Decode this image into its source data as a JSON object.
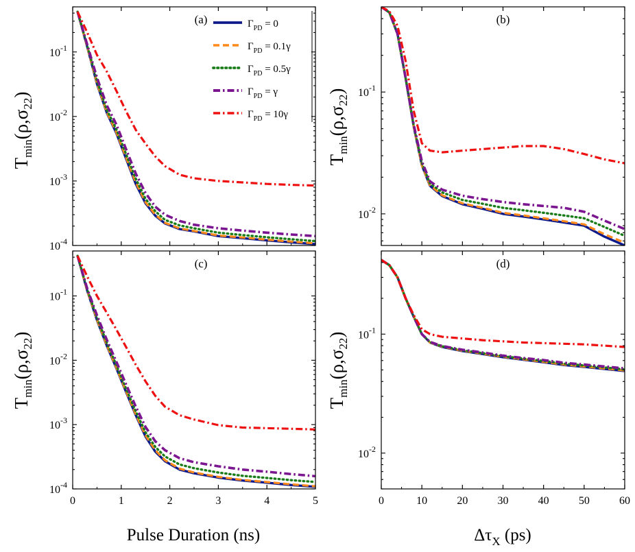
{
  "chart_data": [
    {
      "panel": "(a)",
      "type": "line",
      "yscale": "log",
      "xlim": [
        0,
        5
      ],
      "ylim": [
        0.0001,
        0.5
      ],
      "xticks": [
        "0",
        "1",
        "2",
        "3",
        "4",
        "5"
      ],
      "yticks": [
        {
          "base": "10",
          "exp": "-1"
        },
        {
          "base": "10",
          "exp": "-2"
        },
        {
          "base": "10",
          "exp": "-3"
        },
        {
          "base": "10",
          "exp": "-4"
        }
      ],
      "x": [
        0.1,
        0.3,
        0.5,
        0.7,
        0.9,
        1.1,
        1.3,
        1.5,
        1.7,
        1.9,
        2.2,
        2.5,
        3.0,
        3.5,
        4.0,
        4.5,
        5.0
      ],
      "series": [
        {
          "name": "Γ_PD = 0",
          "values": [
            0.42,
            0.12,
            0.032,
            0.0115,
            0.0055,
            0.0022,
            0.0009,
            0.00045,
            0.00029,
            0.00022,
            0.00018,
            0.000165,
            0.00014,
            0.00013,
            0.00012,
            0.000112,
            0.000105
          ]
        },
        {
          "name": "Γ_PD = 0.1γ",
          "values": [
            0.42,
            0.121,
            0.033,
            0.0118,
            0.0057,
            0.0023,
            0.00095,
            0.00047,
            0.0003,
            0.000225,
            0.000184,
            0.000168,
            0.000143,
            0.000133,
            0.000123,
            0.000115,
            0.000108
          ]
        },
        {
          "name": "Γ_PD = 0.5γ",
          "values": [
            0.42,
            0.125,
            0.036,
            0.0128,
            0.0063,
            0.0026,
            0.00108,
            0.00053,
            0.00034,
            0.00025,
            0.000205,
            0.000185,
            0.000158,
            0.000145,
            0.000134,
            0.000125,
            0.000117
          ]
        },
        {
          "name": "Γ_PD = γ",
          "values": [
            0.42,
            0.13,
            0.04,
            0.015,
            0.0075,
            0.0031,
            0.0013,
            0.00065,
            0.0004,
            0.0003,
            0.00024,
            0.00021,
            0.000185,
            0.00017,
            0.000158,
            0.000148,
            0.00014
          ]
        },
        {
          "name": "Γ_PD = 10γ",
          "values": [
            0.42,
            0.2,
            0.09,
            0.05,
            0.025,
            0.012,
            0.0062,
            0.0038,
            0.0024,
            0.0017,
            0.00125,
            0.0011,
            0.001,
            0.00095,
            0.0009,
            0.00087,
            0.00085
          ]
        }
      ]
    },
    {
      "panel": "(b)",
      "type": "line",
      "yscale": "log",
      "xlim": [
        0,
        60
      ],
      "ylim": [
        0.0055,
        0.5
      ],
      "xticks": [
        "0",
        "10",
        "20",
        "30",
        "40",
        "50",
        "60"
      ],
      "yticks": [
        {
          "base": "10",
          "exp": "-1"
        },
        {
          "base": "10",
          "exp": "-2"
        }
      ],
      "x": [
        0,
        2,
        4,
        6,
        8,
        10,
        12,
        15,
        20,
        25,
        30,
        35,
        40,
        45,
        50,
        55,
        60
      ],
      "series": [
        {
          "name": "Γ_PD = 0",
          "values": [
            0.5,
            0.45,
            0.3,
            0.13,
            0.052,
            0.025,
            0.017,
            0.014,
            0.012,
            0.011,
            0.01,
            0.0095,
            0.009,
            0.0085,
            0.008,
            0.0065,
            0.0055
          ]
        },
        {
          "name": "Γ_PD = 0.1γ",
          "values": [
            0.5,
            0.45,
            0.3,
            0.13,
            0.052,
            0.025,
            0.0172,
            0.0142,
            0.0122,
            0.0112,
            0.0102,
            0.0097,
            0.0092,
            0.0087,
            0.0082,
            0.0068,
            0.0058
          ]
        },
        {
          "name": "Γ_PD = 0.5γ",
          "values": [
            0.5,
            0.45,
            0.3,
            0.13,
            0.053,
            0.026,
            0.0178,
            0.015,
            0.013,
            0.0121,
            0.0112,
            0.0107,
            0.0102,
            0.0097,
            0.0092,
            0.0078,
            0.0066
          ]
        },
        {
          "name": "Γ_PD = γ",
          "values": [
            0.5,
            0.45,
            0.3,
            0.13,
            0.054,
            0.027,
            0.0185,
            0.0158,
            0.0141,
            0.0132,
            0.0125,
            0.012,
            0.0116,
            0.0112,
            0.0104,
            0.0088,
            0.0075
          ]
        },
        {
          "name": "Γ_PD = 10γ",
          "values": [
            0.5,
            0.46,
            0.35,
            0.18,
            0.07,
            0.038,
            0.033,
            0.032,
            0.033,
            0.034,
            0.035,
            0.036,
            0.036,
            0.034,
            0.031,
            0.028,
            0.026
          ]
        }
      ]
    },
    {
      "panel": "(c)",
      "type": "line",
      "yscale": "log",
      "xlim": [
        0,
        5
      ],
      "ylim": [
        0.0001,
        0.5
      ],
      "xticks": [
        "0",
        "1",
        "2",
        "3",
        "4",
        "5"
      ],
      "yticks": [
        {
          "base": "10",
          "exp": "-1"
        },
        {
          "base": "10",
          "exp": "-2"
        },
        {
          "base": "10",
          "exp": "-3"
        },
        {
          "base": "10",
          "exp": "-4"
        }
      ],
      "x": [
        0.1,
        0.3,
        0.5,
        0.7,
        0.9,
        1.1,
        1.3,
        1.5,
        1.7,
        1.9,
        2.2,
        2.5,
        3.0,
        3.5,
        4.0,
        4.5,
        5.0
      ],
      "series": [
        {
          "name": "Γ_PD = 0",
          "values": [
            0.42,
            0.12,
            0.042,
            0.017,
            0.0075,
            0.0032,
            0.0014,
            0.00065,
            0.00038,
            0.00027,
            0.0002,
            0.000175,
            0.00015,
            0.000135,
            0.000125,
            0.000115,
            0.000108
          ]
        },
        {
          "name": "Γ_PD = 0.1γ",
          "values": [
            0.42,
            0.121,
            0.043,
            0.0175,
            0.0077,
            0.0033,
            0.00145,
            0.00068,
            0.0004,
            0.00028,
            0.000207,
            0.00018,
            0.000154,
            0.000138,
            0.000128,
            0.000118,
            0.00011
          ]
        },
        {
          "name": "Γ_PD = 0.5γ",
          "values": [
            0.42,
            0.126,
            0.046,
            0.019,
            0.0084,
            0.0036,
            0.0016,
            0.00076,
            0.00045,
            0.00032,
            0.00024,
            0.00021,
            0.00018,
            0.00016,
            0.000148,
            0.000137,
            0.000128
          ]
        },
        {
          "name": "Γ_PD = γ",
          "values": [
            0.42,
            0.13,
            0.05,
            0.021,
            0.0095,
            0.0042,
            0.0019,
            0.00092,
            0.00055,
            0.0004,
            0.0003,
            0.00026,
            0.000225,
            0.0002,
            0.000185,
            0.00017,
            0.000158
          ]
        },
        {
          "name": "Γ_PD = 10γ",
          "values": [
            0.42,
            0.2,
            0.1,
            0.055,
            0.03,
            0.016,
            0.0085,
            0.0047,
            0.0028,
            0.0019,
            0.0014,
            0.0012,
            0.00098,
            0.0009,
            0.00088,
            0.00086,
            0.00084
          ]
        }
      ]
    },
    {
      "panel": "(d)",
      "type": "line",
      "yscale": "log",
      "xlim": [
        0,
        60
      ],
      "ylim": [
        0.005,
        0.5
      ],
      "xticks": [
        "0",
        "10",
        "20",
        "30",
        "40",
        "50",
        "60"
      ],
      "yticks": [
        {
          "base": "10",
          "exp": "-1"
        },
        {
          "base": "10",
          "exp": "-2"
        }
      ],
      "x": [
        0,
        2,
        4,
        6,
        8,
        10,
        12,
        15,
        20,
        25,
        30,
        35,
        40,
        45,
        50,
        55,
        60
      ],
      "series": [
        {
          "name": "Γ_PD = 0",
          "values": [
            0.42,
            0.38,
            0.3,
            0.2,
            0.14,
            0.1,
            0.085,
            0.078,
            0.072,
            0.068,
            0.064,
            0.061,
            0.058,
            0.055,
            0.053,
            0.051,
            0.049
          ]
        },
        {
          "name": "Γ_PD = 0.1γ",
          "values": [
            0.42,
            0.38,
            0.3,
            0.2,
            0.14,
            0.1,
            0.085,
            0.0785,
            0.0725,
            0.0685,
            0.0645,
            0.0615,
            0.0585,
            0.0555,
            0.0535,
            0.0515,
            0.0495
          ]
        },
        {
          "name": "Γ_PD = 0.5γ",
          "values": [
            0.42,
            0.38,
            0.3,
            0.2,
            0.14,
            0.1,
            0.0855,
            0.079,
            0.0732,
            0.0692,
            0.0652,
            0.0622,
            0.0595,
            0.0565,
            0.0545,
            0.0525,
            0.0505
          ]
        },
        {
          "name": "Γ_PD = γ",
          "values": [
            0.42,
            0.38,
            0.3,
            0.2,
            0.14,
            0.1,
            0.086,
            0.0795,
            0.074,
            0.07,
            0.066,
            0.063,
            0.0605,
            0.0575,
            0.0555,
            0.0535,
            0.0515
          ]
        },
        {
          "name": "Γ_PD = 10γ",
          "values": [
            0.42,
            0.38,
            0.3,
            0.2,
            0.145,
            0.11,
            0.1,
            0.095,
            0.092,
            0.089,
            0.087,
            0.085,
            0.084,
            0.083,
            0.082,
            0.08,
            0.078
          ]
        }
      ]
    }
  ],
  "styles": [
    {
      "color": "#0d1a8c",
      "dash": "",
      "width": 3.4
    },
    {
      "color": "#ff8a1c",
      "dash": "9,5",
      "width": 3.2
    },
    {
      "color": "#1a7d1a",
      "dash": "1.5,4.5",
      "width": 3.4
    },
    {
      "color": "#7b1590",
      "dash": "10,4,2.5,4",
      "width": 3.6
    },
    {
      "color": "#ee1111",
      "dash": "10,4,2.5,4",
      "width": 3.2
    }
  ],
  "legend": {
    "entries": [
      {
        "sym": "Γ",
        "sub": "PD",
        "rest": " = 0"
      },
      {
        "sym": "Γ",
        "sub": "PD",
        "rest": " = 0.1γ"
      },
      {
        "sym": "Γ",
        "sub": "PD",
        "rest": " = 0.5γ"
      },
      {
        "sym": "Γ",
        "sub": "PD",
        "rest": " = γ"
      },
      {
        "sym": "Γ",
        "sub": "PD",
        "rest": " = 10γ"
      }
    ]
  },
  "labels": {
    "ylabel_main": "T",
    "ylabel_sub": "min",
    "ylabel_args": "(ρ,σ",
    "ylabel_args_sub": "22",
    "ylabel_close": ")",
    "xlabel_left": "Pulse Duration (ns)",
    "xlabel_right_delta": "Δτ",
    "xlabel_right_sub": "X",
    "xlabel_right_rest": " (ps)"
  }
}
